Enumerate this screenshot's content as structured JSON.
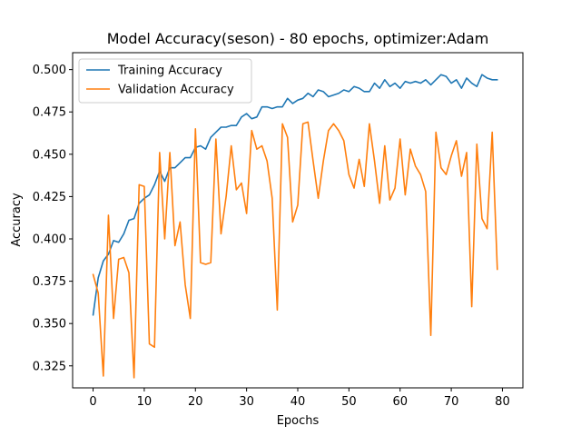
{
  "chart_data": {
    "type": "line",
    "title": "Model Accuracy(seson) - 80 epochs, optimizer:Adam",
    "xlabel": "Epochs",
    "ylabel": "Accuracy",
    "xlim": [
      -4,
      84
    ],
    "ylim": [
      0.312,
      0.51
    ],
    "x_ticks": [
      0,
      10,
      20,
      30,
      40,
      50,
      60,
      70,
      80
    ],
    "y_ticks": [
      0.325,
      0.35,
      0.375,
      0.4,
      0.425,
      0.45,
      0.475,
      0.5
    ],
    "y_tick_labels": [
      "0.325",
      "0.350",
      "0.375",
      "0.400",
      "0.425",
      "0.450",
      "0.475",
      "0.500"
    ],
    "grid": false,
    "legend": "upper-left",
    "x": [
      0,
      1,
      2,
      3,
      4,
      5,
      6,
      7,
      8,
      9,
      10,
      11,
      12,
      13,
      14,
      15,
      16,
      17,
      18,
      19,
      20,
      21,
      22,
      23,
      24,
      25,
      26,
      27,
      28,
      29,
      30,
      31,
      32,
      33,
      34,
      35,
      36,
      37,
      38,
      39,
      40,
      41,
      42,
      43,
      44,
      45,
      46,
      47,
      48,
      49,
      50,
      51,
      52,
      53,
      54,
      55,
      56,
      57,
      58,
      59,
      60,
      61,
      62,
      63,
      64,
      65,
      66,
      67,
      68,
      69,
      70,
      71,
      72,
      73,
      74,
      75,
      76,
      77,
      78,
      79
    ],
    "series": [
      {
        "name": "Training Accuracy",
        "color": "#1f77b4",
        "values": [
          0.355,
          0.377,
          0.387,
          0.391,
          0.399,
          0.398,
          0.403,
          0.411,
          0.412,
          0.421,
          0.424,
          0.426,
          0.432,
          0.44,
          0.434,
          0.442,
          0.442,
          0.445,
          0.448,
          0.448,
          0.454,
          0.455,
          0.453,
          0.46,
          0.463,
          0.466,
          0.466,
          0.467,
          0.467,
          0.472,
          0.474,
          0.471,
          0.472,
          0.478,
          0.478,
          0.477,
          0.478,
          0.478,
          0.483,
          0.48,
          0.482,
          0.483,
          0.486,
          0.484,
          0.488,
          0.487,
          0.484,
          0.485,
          0.486,
          0.488,
          0.487,
          0.49,
          0.489,
          0.487,
          0.487,
          0.492,
          0.489,
          0.494,
          0.49,
          0.492,
          0.489,
          0.493,
          0.492,
          0.493,
          0.492,
          0.494,
          0.491,
          0.494,
          0.497,
          0.496,
          0.492,
          0.494,
          0.489,
          0.495,
          0.492,
          0.49,
          0.497,
          0.495,
          0.494,
          0.494
        ]
      },
      {
        "name": "Validation Accuracy",
        "color": "#ff7f0e",
        "values": [
          0.379,
          0.368,
          0.319,
          0.414,
          0.353,
          0.388,
          0.389,
          0.38,
          0.318,
          0.432,
          0.431,
          0.338,
          0.336,
          0.451,
          0.4,
          0.451,
          0.396,
          0.41,
          0.373,
          0.353,
          0.465,
          0.386,
          0.385,
          0.386,
          0.459,
          0.403,
          0.425,
          0.455,
          0.429,
          0.433,
          0.415,
          0.464,
          0.453,
          0.455,
          0.446,
          0.424,
          0.358,
          0.468,
          0.46,
          0.41,
          0.42,
          0.468,
          0.469,
          0.446,
          0.424,
          0.446,
          0.464,
          0.468,
          0.464,
          0.458,
          0.438,
          0.43,
          0.447,
          0.431,
          0.468,
          0.446,
          0.421,
          0.455,
          0.423,
          0.43,
          0.459,
          0.426,
          0.453,
          0.443,
          0.438,
          0.428,
          0.343,
          0.463,
          0.442,
          0.438,
          0.449,
          0.458,
          0.437,
          0.451,
          0.36,
          0.456,
          0.412,
          0.406,
          0.463,
          0.382
        ]
      }
    ]
  }
}
